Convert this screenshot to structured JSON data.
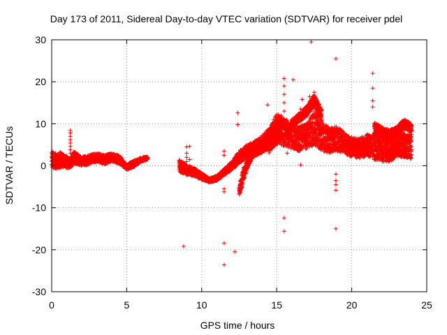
{
  "chart_data": {
    "type": "scatter",
    "title": "Day 173 of 2011, Sidereal Day-to-day VTEC variation (SDTVAR) for receiver pdel",
    "xlabel": "GPS time / hours",
    "ylabel": "SDTVAR / TECUs",
    "xlim": [
      0,
      25
    ],
    "ylim": [
      -30,
      30
    ],
    "xticks": [
      "0",
      "5",
      "10",
      "15",
      "20",
      "25"
    ],
    "yticks": [
      "-30",
      "-20",
      "-10",
      "0",
      "10",
      "20",
      "30"
    ],
    "grid": true,
    "marker": "+",
    "color": "#ff0000",
    "series": [
      {
        "name": "SDTVAR",
        "bands": [
          {
            "x": [
              0.0,
              0.3,
              0.6,
              0.9,
              1.2,
              1.5,
              2.0,
              2.5,
              3.0,
              3.5,
              4.0,
              4.5,
              5.0,
              5.5,
              6.0,
              6.4
            ],
            "y": [
              1.5,
              1.0,
              1.5,
              1.0,
              0.5,
              2.0,
              1.0,
              1.5,
              2.0,
              1.5,
              2.0,
              1.5,
              -0.3,
              0.5,
              1.5,
              1.8
            ],
            "spread": [
              2.0,
              2.0,
              1.8,
              1.5,
              1.2,
              1.5,
              1.0,
              1.2,
              1.0,
              1.2,
              1.0,
              1.0,
              0.6,
              0.8,
              0.5,
              0.3
            ]
          },
          {
            "x": [
              8.5,
              9.0,
              9.5,
              10.0,
              10.5,
              11.0,
              11.5,
              12.0,
              12.5,
              13.0,
              13.5,
              14.0,
              14.5,
              15.0,
              15.3
            ],
            "y": [
              0.0,
              -1.0,
              -1.5,
              -2.5,
              -3.5,
              -3.0,
              -1.5,
              0.0,
              2.0,
              3.5,
              4.0,
              5.0,
              6.5,
              8.0,
              9.0
            ],
            "spread": [
              1.5,
              1.2,
              1.0,
              0.8,
              0.5,
              0.6,
              0.8,
              1.0,
              1.5,
              1.5,
              1.8,
              2.0,
              2.5,
              3.0,
              3.0
            ]
          },
          {
            "x": [
              12.5,
              12.8,
              13.1,
              13.4,
              13.8,
              14.2,
              14.6,
              15.0
            ],
            "y": [
              -6.0,
              -2.0,
              1.0,
              3.0,
              4.0,
              5.0,
              6.0,
              7.5
            ],
            "spread": [
              1.5,
              1.5,
              1.2,
              1.0,
              1.2,
              1.5,
              2.0,
              2.5
            ]
          },
          {
            "x": [
              14.5,
              15.0,
              15.5,
              16.0,
              16.5,
              17.0,
              17.5,
              18.0,
              18.5,
              19.0,
              19.5,
              20.0,
              20.5,
              21.0,
              21.5,
              22.0,
              22.5,
              23.0,
              23.5,
              24.0
            ],
            "y": [
              6.0,
              9.0,
              8.0,
              7.0,
              6.5,
              7.0,
              9.0,
              7.0,
              6.0,
              6.5,
              5.5,
              4.5,
              4.0,
              5.0,
              4.5,
              4.0,
              3.5,
              4.5,
              5.0,
              4.5
            ],
            "spread": [
              3.0,
              3.5,
              3.5,
              3.0,
              3.0,
              3.0,
              4.0,
              3.5,
              3.0,
              3.0,
              2.5,
              2.5,
              2.5,
              2.5,
              3.0,
              3.0,
              2.5,
              2.5,
              3.0,
              3.0
            ]
          },
          {
            "x": [
              21.5,
              22.0,
              22.5,
              23.0,
              23.5,
              24.0
            ],
            "y": [
              9.0,
              8.0,
              7.5,
              8.0,
              10.0,
              9.0
            ],
            "spread": [
              1.5,
              1.2,
              1.0,
              1.2,
              1.2,
              1.0
            ]
          },
          {
            "x": [
              16.0,
              16.5,
              17.0,
              17.5,
              18.0
            ],
            "y": [
              10.0,
              11.5,
              13.0,
              15.5,
              12.0
            ],
            "spread": [
              1.0,
              1.0,
              1.2,
              1.5,
              1.5
            ]
          }
        ],
        "spikes": [
          {
            "x": 1.25,
            "y": [
              3.0,
              3.8,
              4.6,
              5.4,
              6.2,
              7.0,
              7.8,
              8.4
            ]
          },
          {
            "x": 9.0,
            "y": [
              -2.0,
              -1.0,
              0.0,
              1.0,
              2.0,
              3.0,
              4.5
            ]
          },
          {
            "x": 11.5,
            "y": [
              -6.2,
              -5.5,
              2.5,
              3.5
            ]
          },
          {
            "x": 15.5,
            "y": [
              5.0,
              7.0,
              9.0,
              11.0,
              13.0,
              15.0,
              17.0,
              19.0,
              20.8
            ]
          },
          {
            "x": 15.7,
            "y": [
              3.0,
              5.0,
              7.0
            ]
          },
          {
            "x": 18.95,
            "y": [
              -5.8,
              -4.5,
              -3.5,
              -2.0
            ]
          },
          {
            "x": 21.4,
            "y": [
              14.0,
              15.5,
              18.5,
              22.0
            ]
          },
          {
            "x": 17.5,
            "y": [
              12.0,
              14.0,
              16.0,
              17.5
            ]
          }
        ],
        "outliers": [
          {
            "x": 17.3,
            "y": 29.5
          },
          {
            "x": 18.95,
            "y": 25.5
          },
          {
            "x": 8.8,
            "y": -19.2
          },
          {
            "x": 11.5,
            "y": -18.4
          },
          {
            "x": 11.5,
            "y": -23.6
          },
          {
            "x": 12.2,
            "y": -20.5
          },
          {
            "x": 15.5,
            "y": -15.6
          },
          {
            "x": 15.5,
            "y": -12.4
          },
          {
            "x": 18.95,
            "y": -15.0
          },
          {
            "x": 12.4,
            "y": 12.6
          },
          {
            "x": 12.4,
            "y": 9.8
          },
          {
            "x": 14.4,
            "y": 14.5
          },
          {
            "x": 16.1,
            "y": 20.5
          },
          {
            "x": 16.7,
            "y": 15.8
          },
          {
            "x": 16.6,
            "y": 13.5
          },
          {
            "x": 17.2,
            "y": 16.5
          },
          {
            "x": 16.6,
            "y": 0.2
          },
          {
            "x": 9.2,
            "y": 4.6
          },
          {
            "x": 9.2,
            "y": 1.5
          }
        ]
      }
    ]
  }
}
